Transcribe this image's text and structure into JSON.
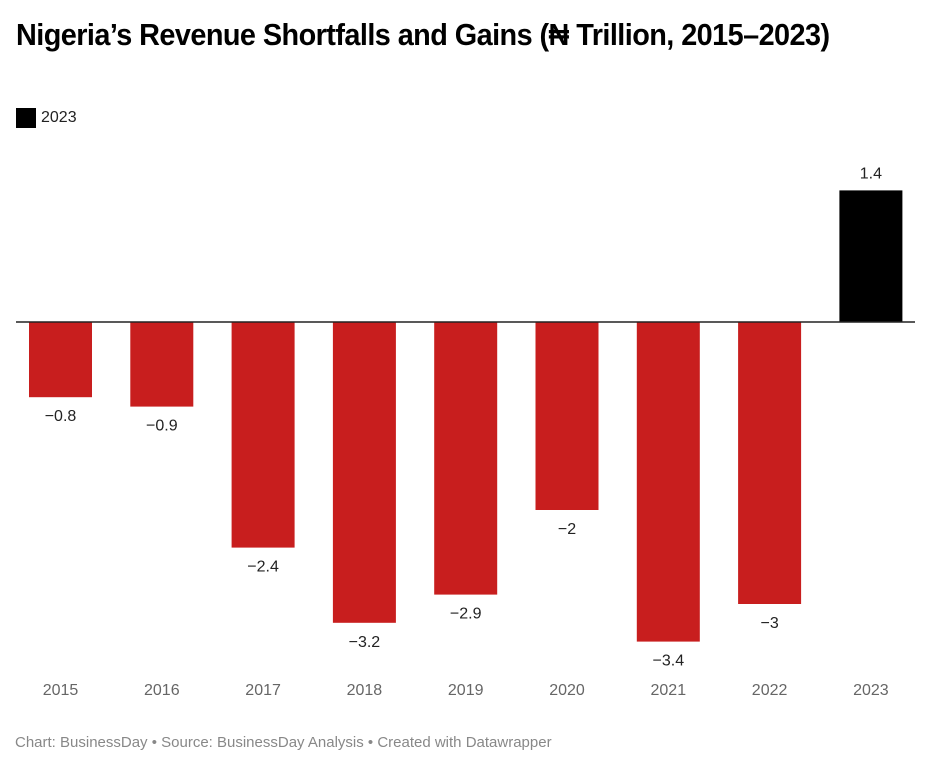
{
  "title": "Nigeria’s Revenue Shortfalls and Gains (₦ Trillion, 2015–2023)",
  "legend": {
    "label": "2023",
    "color": "#000000"
  },
  "footer": "Chart: BusinessDay • Source: BusinessDay Analysis • Created with Datawrapper",
  "chart_data": {
    "type": "bar",
    "title": "Nigeria’s Revenue Shortfalls and Gains (₦ Trillion, 2015–2023)",
    "xlabel": "",
    "ylabel": "",
    "categories": [
      "2015",
      "2016",
      "2017",
      "2018",
      "2019",
      "2020",
      "2021",
      "2022",
      "2023"
    ],
    "values": [
      -0.8,
      -0.9,
      -2.4,
      -3.2,
      -2.9,
      -2.0,
      -3.4,
      -3.0,
      1.4
    ],
    "value_labels": [
      "−0.8",
      "−0.9",
      "−2.4",
      "−3.2",
      "−2.9",
      "−2",
      "−3.4",
      "−3",
      "1.4"
    ],
    "colors": [
      "#c81e1e",
      "#c81e1e",
      "#c81e1e",
      "#c81e1e",
      "#c81e1e",
      "#c81e1e",
      "#c81e1e",
      "#c81e1e",
      "#000000"
    ],
    "ylim": [
      -3.4,
      1.4
    ],
    "grid": false,
    "legend": {
      "entries": [
        "2023"
      ],
      "position": "top-left"
    }
  }
}
